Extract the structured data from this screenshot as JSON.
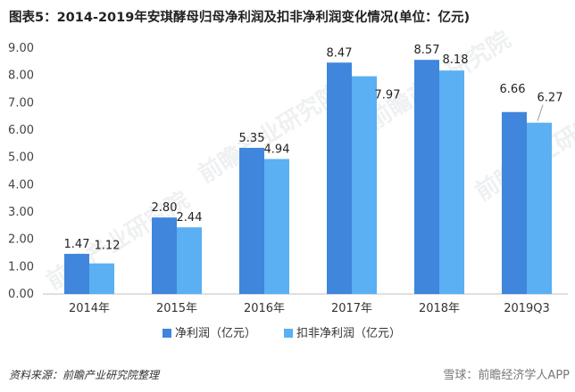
{
  "title": "图表5：2014-2019年安琪酵母归母净利润及扣非净利润变化情况(单位：亿元)",
  "source": "资料来源：前瞻产业研究院整理",
  "brand": "雪球：前瞻经济学人APP",
  "watermark": "前瞻产业研究院",
  "colors": {
    "series1": "#3F86DC",
    "series2": "#5AB0F2"
  },
  "chart_data": {
    "type": "bar",
    "categories": [
      "2014年",
      "2015年",
      "2016年",
      "2017年",
      "2018年",
      "2019Q3"
    ],
    "series": [
      {
        "name": "净利润（亿元）",
        "values": [
          1.47,
          2.8,
          5.35,
          8.47,
          8.57,
          6.66
        ]
      },
      {
        "name": "扣非净利润（亿元）",
        "values": [
          1.12,
          2.44,
          4.94,
          7.97,
          8.18,
          6.27
        ]
      }
    ],
    "value_labels": [
      [
        "1.47",
        "2.80",
        "5.35",
        "8.47",
        "8.57",
        "6.66"
      ],
      [
        "1.12",
        "2.44",
        "4.94",
        "7.97",
        "8.18",
        "6.27"
      ]
    ],
    "y_ticks": [
      "0.00",
      "1.00",
      "2.00",
      "3.00",
      "4.00",
      "5.00",
      "6.00",
      "7.00",
      "8.00",
      "9.00"
    ],
    "ylim": [
      0,
      9
    ],
    "xlabel": "",
    "ylabel": "",
    "grid": false,
    "legend_position": "bottom"
  }
}
